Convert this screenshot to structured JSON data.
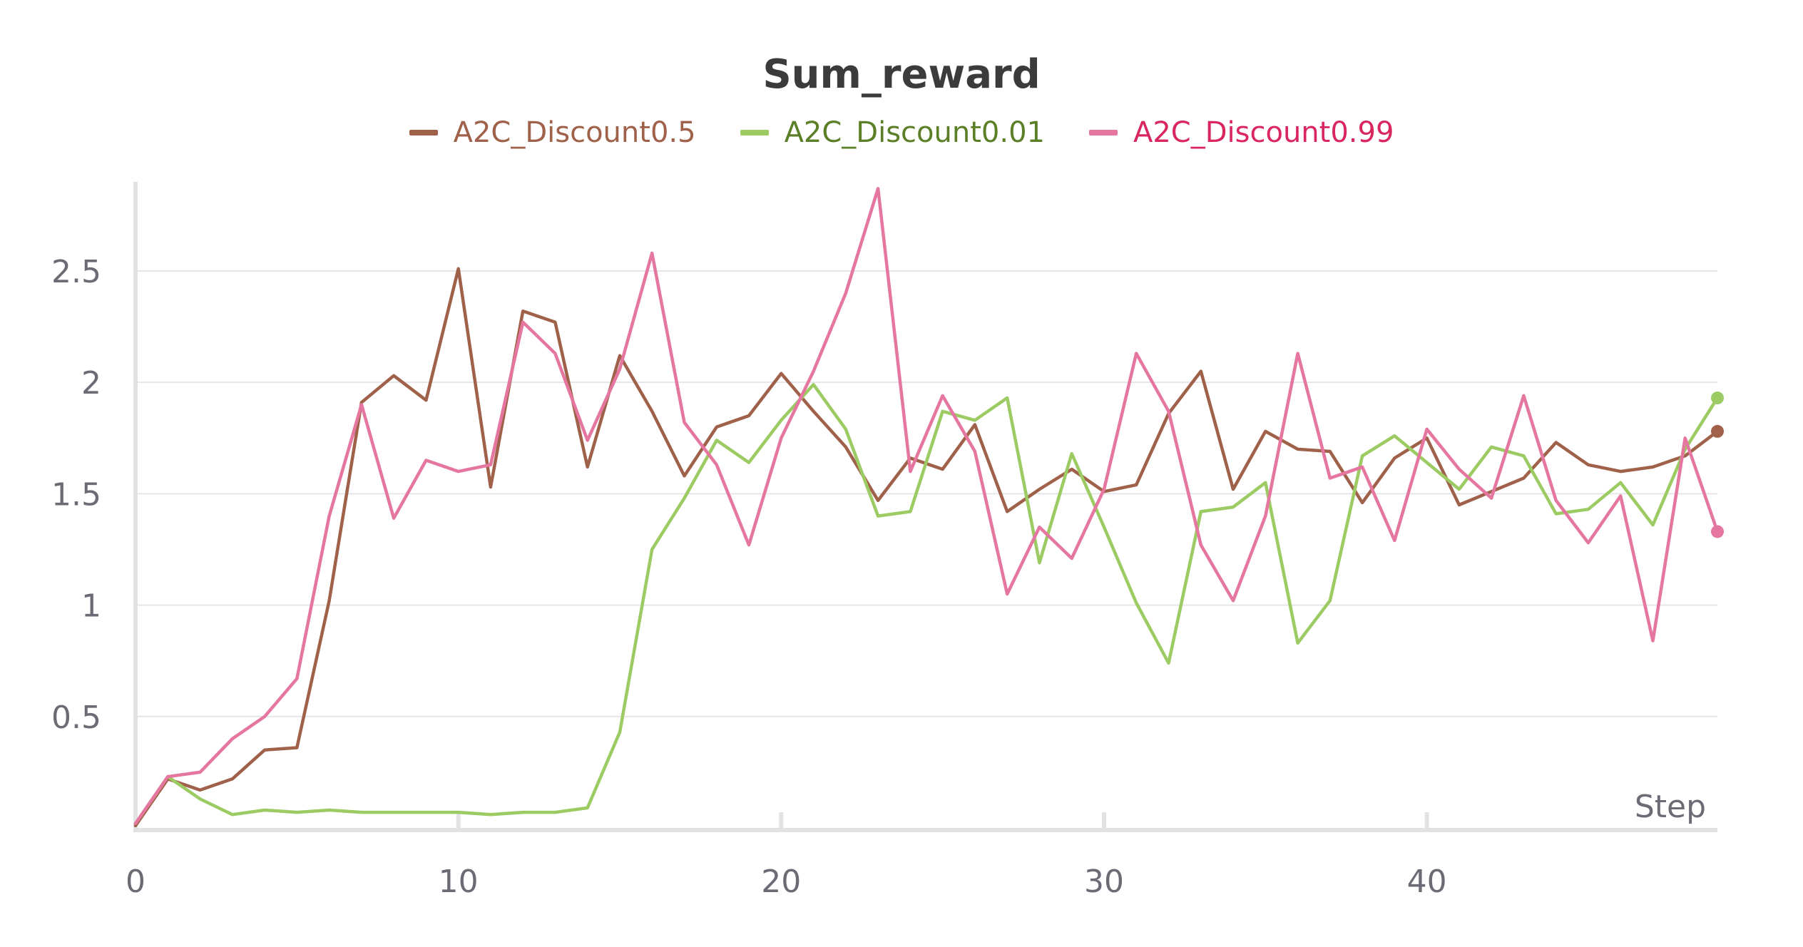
{
  "chart_data": {
    "type": "line",
    "title": "Sum_reward",
    "xlabel": "Step",
    "ylabel": "",
    "xlim": [
      0,
      49
    ],
    "ylim": [
      0,
      2.9
    ],
    "xticks": [
      0,
      10,
      20,
      30,
      40
    ],
    "yticks": [
      0.5,
      1,
      1.5,
      2,
      2.5
    ],
    "ytick_labels": [
      "0.5",
      "1",
      "1.5",
      "2",
      "2.5"
    ],
    "grid": true,
    "legend_position": "top-center",
    "x": [
      0,
      1,
      2,
      3,
      4,
      5,
      6,
      7,
      8,
      9,
      10,
      11,
      12,
      13,
      14,
      15,
      16,
      17,
      18,
      19,
      20,
      21,
      22,
      23,
      24,
      25,
      26,
      27,
      28,
      29,
      30,
      31,
      32,
      33,
      34,
      35,
      36,
      37,
      38,
      39,
      40,
      41,
      42,
      43,
      44,
      45,
      46,
      47,
      48,
      49
    ],
    "series": [
      {
        "name": "A2C_Discount0.5",
        "color": "#a0614a",
        "legend_text_color": "#a0614a",
        "values": [
          0.01,
          0.22,
          0.17,
          0.22,
          0.35,
          0.36,
          1.02,
          1.91,
          2.03,
          1.92,
          2.51,
          1.53,
          2.32,
          2.27,
          1.62,
          2.12,
          1.87,
          1.58,
          1.8,
          1.85,
          2.04,
          1.87,
          1.71,
          1.47,
          1.66,
          1.61,
          1.81,
          1.42,
          1.52,
          1.61,
          1.51,
          1.54,
          1.86,
          2.05,
          1.52,
          1.78,
          1.7,
          1.69,
          1.46,
          1.66,
          1.75,
          1.45,
          1.51,
          1.57,
          1.73,
          1.63,
          1.6,
          1.62,
          1.67,
          1.78
        ]
      },
      {
        "name": "A2C_Discount0.01",
        "color": "#9bcb62",
        "legend_text_color": "#5a7f26",
        "values": [
          0.02,
          0.23,
          0.13,
          0.06,
          0.08,
          0.07,
          0.08,
          0.07,
          0.07,
          0.07,
          0.07,
          0.06,
          0.07,
          0.07,
          0.09,
          0.43,
          1.25,
          1.48,
          1.74,
          1.64,
          1.83,
          1.99,
          1.79,
          1.4,
          1.42,
          1.87,
          1.83,
          1.93,
          1.19,
          1.68,
          1.35,
          1.01,
          0.74,
          1.42,
          1.44,
          1.55,
          0.83,
          1.02,
          1.67,
          1.76,
          1.64,
          1.52,
          1.71,
          1.67,
          1.41,
          1.43,
          1.55,
          1.36,
          1.7,
          1.93
        ]
      },
      {
        "name": "A2C_Discount0.99",
        "color": "#e4769f",
        "legend_text_color": "#d9265f",
        "values": [
          0.02,
          0.23,
          0.25,
          0.4,
          0.5,
          0.67,
          1.4,
          1.9,
          1.39,
          1.65,
          1.6,
          1.63,
          2.27,
          2.13,
          1.74,
          2.06,
          2.58,
          1.82,
          1.63,
          1.27,
          1.75,
          2.05,
          2.4,
          2.87,
          1.6,
          1.94,
          1.69,
          1.05,
          1.35,
          1.21,
          1.52,
          2.13,
          1.87,
          1.27,
          1.02,
          1.4,
          2.13,
          1.57,
          1.62,
          1.29,
          1.79,
          1.61,
          1.48,
          1.94,
          1.47,
          1.28,
          1.49,
          0.84,
          1.75,
          1.33
        ]
      }
    ]
  }
}
